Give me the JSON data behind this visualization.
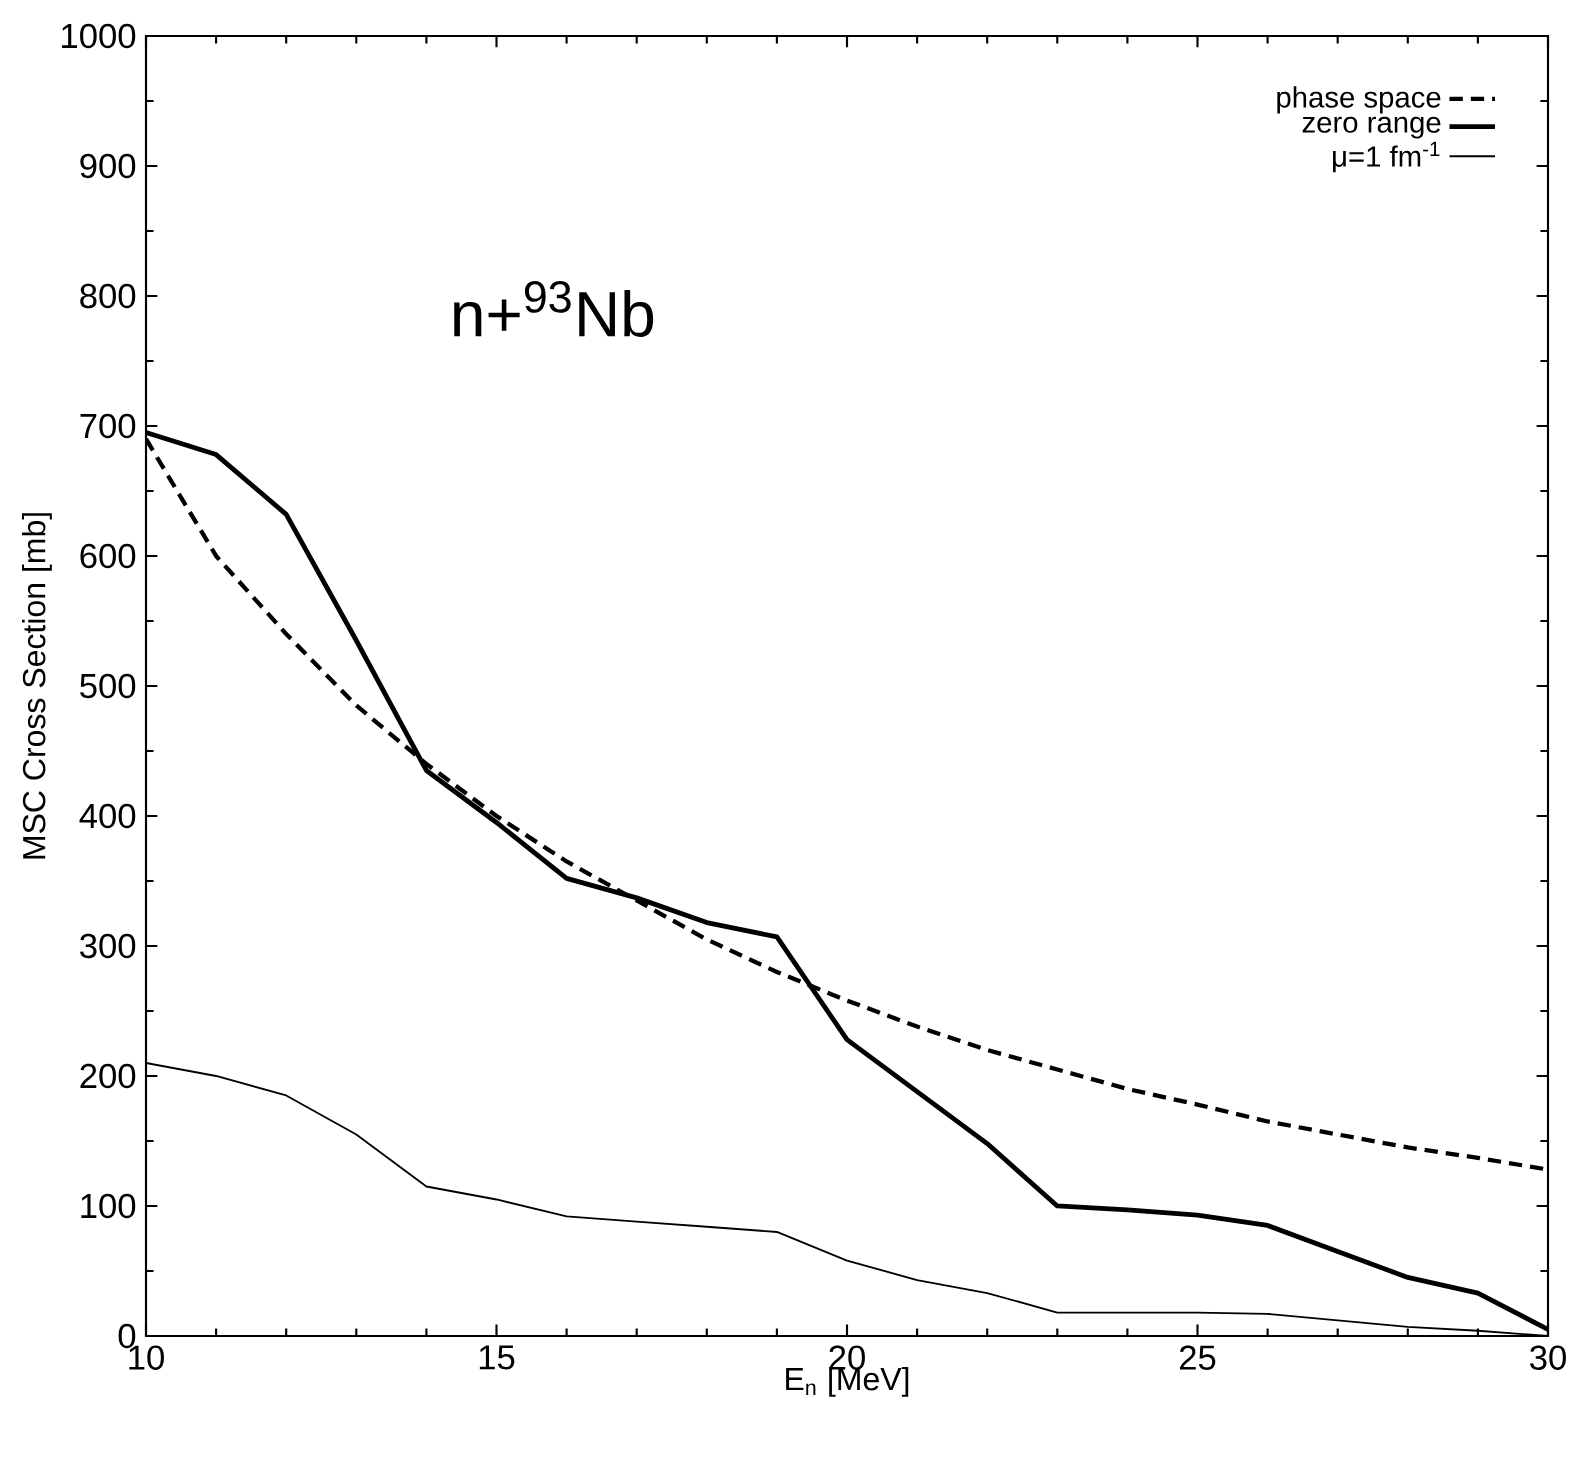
{
  "chart_data": {
    "type": "line",
    "xlabel": "E$_{n}$ [MeV]",
    "ylabel": "MSC Cross Section [mb]",
    "annotations": [
      "n+$^{93}$Nb"
    ],
    "x": [
      10,
      11,
      12,
      13,
      14,
      15,
      16,
      17,
      18,
      19,
      20,
      21,
      22,
      23,
      24,
      25,
      26,
      27,
      28,
      29,
      30
    ],
    "series": [
      {
        "name": "phase space",
        "color": "#000000",
        "line_style": "dashed",
        "values": [
          690,
          600,
          540,
          485,
          440,
          400,
          365,
          335,
          305,
          280,
          258,
          238,
          220,
          205,
          190,
          178,
          165,
          155,
          145,
          137,
          128
        ]
      },
      {
        "name": "zero range",
        "color": "#000000",
        "line_style": "solid",
        "values": [
          695,
          678,
          632,
          535,
          435,
          395,
          352,
          337,
          318,
          307,
          228,
          188,
          148,
          100,
          97,
          93,
          85,
          65,
          45,
          33,
          5
        ]
      },
      {
        "name": "μ=1 fm$^{-1}$",
        "color": "#000000",
        "line_style": "solid",
        "values": [
          210,
          200,
          185,
          155,
          115,
          105,
          92,
          88,
          84,
          80,
          58,
          43,
          33,
          18,
          18,
          18,
          17,
          12,
          7,
          4,
          0
        ]
      }
    ],
    "xlim": [
      10,
      30
    ],
    "xticks": [
      10,
      15,
      20,
      25,
      30
    ],
    "ylim": [
      0,
      1000
    ],
    "yticks": [
      0,
      100,
      200,
      300,
      400,
      500,
      600,
      700,
      800,
      900,
      1000
    ],
    "legend": "top right",
    "grid": false,
    "marker": "none"
  }
}
